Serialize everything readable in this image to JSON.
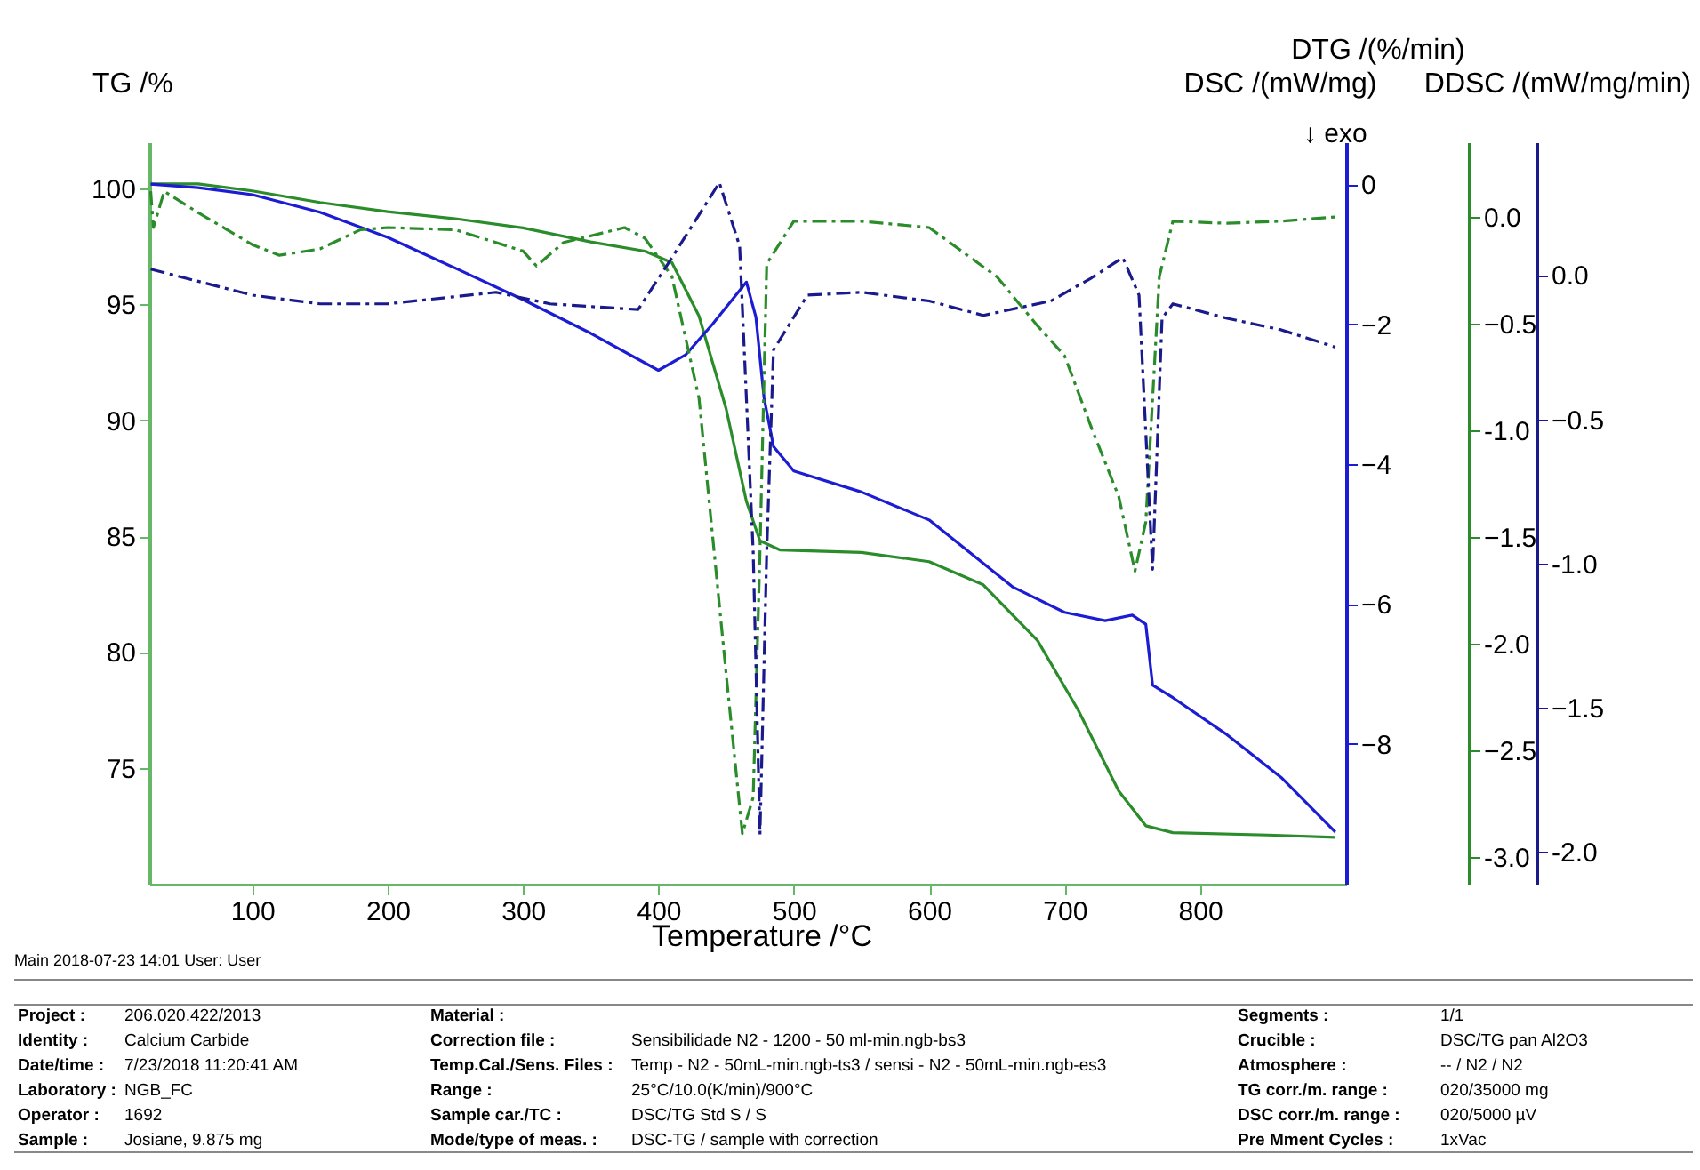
{
  "chart_data": [
    {
      "type": "line",
      "xlabel": "Temperature /°C",
      "ylabel": "TG /%",
      "y2label": "DSC /(mW/mg)",
      "y3label": "DTG /(%/min)",
      "xlim": [
        24,
        908
      ],
      "xticks": [
        100,
        200,
        300,
        400,
        500,
        600,
        700,
        800
      ],
      "ylim": [
        70,
        102
      ],
      "yticks": [
        75,
        80,
        85,
        90,
        95,
        100
      ],
      "y2lim": [
        -10,
        0.6
      ],
      "y2ticks": [
        -8,
        -6,
        -4,
        -2,
        0
      ],
      "y3lim": [
        -3.125,
        0.35
      ],
      "y3ticks": [
        {
          "value": -3,
          "label": "-3.0"
        },
        -2.5,
        {
          "value": -2,
          "label": "-2.0"
        },
        -1.5,
        {
          "value": -1,
          "label": "-1.0"
        },
        -0.5,
        {
          "value": 0,
          "label": "0.0"
        }
      ],
      "grid": false,
      "marker": "none",
      "series": [
        {
          "color": "#2a8c2a",
          "axis": "y",
          "line_style": "solid",
          "x": [
            25,
            60,
            100,
            150,
            200,
            250,
            300,
            350,
            390,
            410,
            430,
            450,
            465,
            475,
            490,
            550,
            600,
            640,
            680,
            710,
            740,
            760,
            780,
            850,
            900
          ],
          "values": [
            100.2,
            100.2,
            99.9,
            99.4,
            99.0,
            98.7,
            98.3,
            97.7,
            97.3,
            96.8,
            94.5,
            90.5,
            86.5,
            84.8,
            84.4,
            84.3,
            83.9,
            82.9,
            80.5,
            77.5,
            74.0,
            72.5,
            72.2,
            72.1,
            72.0
          ]
        },
        {
          "color": "#1c1cd4",
          "axis": "y2",
          "line_style": "solid",
          "x": [
            25,
            60,
            100,
            150,
            200,
            250,
            300,
            350,
            400,
            420,
            440,
            465,
            472,
            478,
            485,
            500,
            550,
            600,
            662,
            700,
            730,
            750,
            760,
            765,
            780,
            820,
            860,
            900
          ],
          "values": [
            0.0,
            -0.05,
            -0.15,
            -0.4,
            -0.76,
            -1.2,
            -1.65,
            -2.13,
            -2.66,
            -2.44,
            -2.0,
            -1.4,
            -1.9,
            -3.05,
            -3.75,
            -4.1,
            -4.4,
            -4.8,
            -5.76,
            -6.12,
            -6.24,
            -6.16,
            -6.29,
            -7.16,
            -7.34,
            -7.87,
            -8.48,
            -9.26
          ]
        },
        {
          "color": "#2a8c2a",
          "axis": "y3",
          "line_style": "dashdot",
          "x": [
            25,
            27,
            35,
            60,
            100,
            120,
            150,
            180,
            200,
            250,
            300,
            310,
            330,
            375,
            390,
            410,
            430,
            450,
            462,
            470,
            475,
            480,
            500,
            550,
            600,
            650,
            680,
            700,
            720,
            740,
            752,
            760,
            770,
            780,
            820,
            860,
            900
          ],
          "values": [
            0.12,
            -0.05,
            0.12,
            0.02,
            -0.13,
            -0.18,
            -0.15,
            -0.06,
            -0.05,
            -0.06,
            -0.16,
            -0.23,
            -0.12,
            -0.05,
            -0.1,
            -0.28,
            -0.85,
            -2.14,
            -2.89,
            -2.72,
            -1.57,
            -0.22,
            -0.02,
            -0.02,
            -0.05,
            -0.28,
            -0.51,
            -0.65,
            -0.99,
            -1.31,
            -1.66,
            -1.43,
            -0.28,
            -0.02,
            -0.03,
            -0.02,
            0.0
          ]
        }
      ],
      "annotations": [
        "↓ exo",
        "Main   2018-07-23 14:01   User: User",
        "Project : 206.020.422/2013",
        "Identity : Calcium Carbide",
        "Date/time : 7/23/2018 11:20:41 AM",
        "Laboratory : NGB_FC",
        "Operator : 1692",
        "Sample : Josiane, 9.875 mg",
        "Material :",
        "Correction file : Sensibilidade N2 - 1200 - 50 ml-min.ngb-bs3",
        "Temp.Cal./Sens. Files : Temp - N2 - 50mL-min.ngb-ts3 / sensi - N2 - 50mL-min.ngb-es3",
        "Range : 25°C/10.0(K/min)/900°C",
        "Sample car./TC : DSC/TG Std S / S",
        "Mode/type of meas. : DSC-TG / sample with correction",
        "Segments : 1/1",
        "Crucible : DSC/TG pan Al2O3",
        "Atmosphere : -- / N2 / N2",
        "TG corr./m. range : 020/35000 mg",
        "DSC corr./m. range : 020/5000 µV",
        "Pre Mment Cycles : 1xVac"
      ]
    },
    {
      "type": "line",
      "ylabel": "DDSC /(mW/mg/min)",
      "xlim": [
        24,
        908
      ],
      "xticks": [
        100,
        200,
        300,
        400,
        500,
        600,
        700,
        800
      ],
      "tick_labels": "y",
      "ylim": [
        -2.11,
        0.46
      ],
      "yticks": [
        {
          "value": -2,
          "label": "-2.0"
        },
        -1.5,
        {
          "value": -1,
          "label": "-1.0"
        },
        -0.5,
        {
          "value": 0,
          "label": "0.0"
        }
      ],
      "series": [
        {
          "color": "#1a1a8c",
          "line_style": "dashdot",
          "x": [
            25,
            100,
            150,
            200,
            280,
            320,
            385,
            410,
            445,
            460,
            470,
            475,
            480,
            485,
            510,
            550,
            600,
            640,
            690,
            720,
            743,
            755,
            765,
            772,
            780,
            820,
            860,
            900
          ],
          "values": [
            0.02,
            -0.07,
            -0.1,
            -0.1,
            -0.06,
            -0.1,
            -0.12,
            0.06,
            0.32,
            0.1,
            -0.96,
            -1.94,
            -0.96,
            -0.26,
            -0.07,
            -0.06,
            -0.09,
            -0.14,
            -0.09,
            -0.01,
            0.06,
            -0.07,
            -1.02,
            -0.15,
            -0.1,
            -0.15,
            -0.19,
            -0.25
          ]
        }
      ]
    }
  ]
}
